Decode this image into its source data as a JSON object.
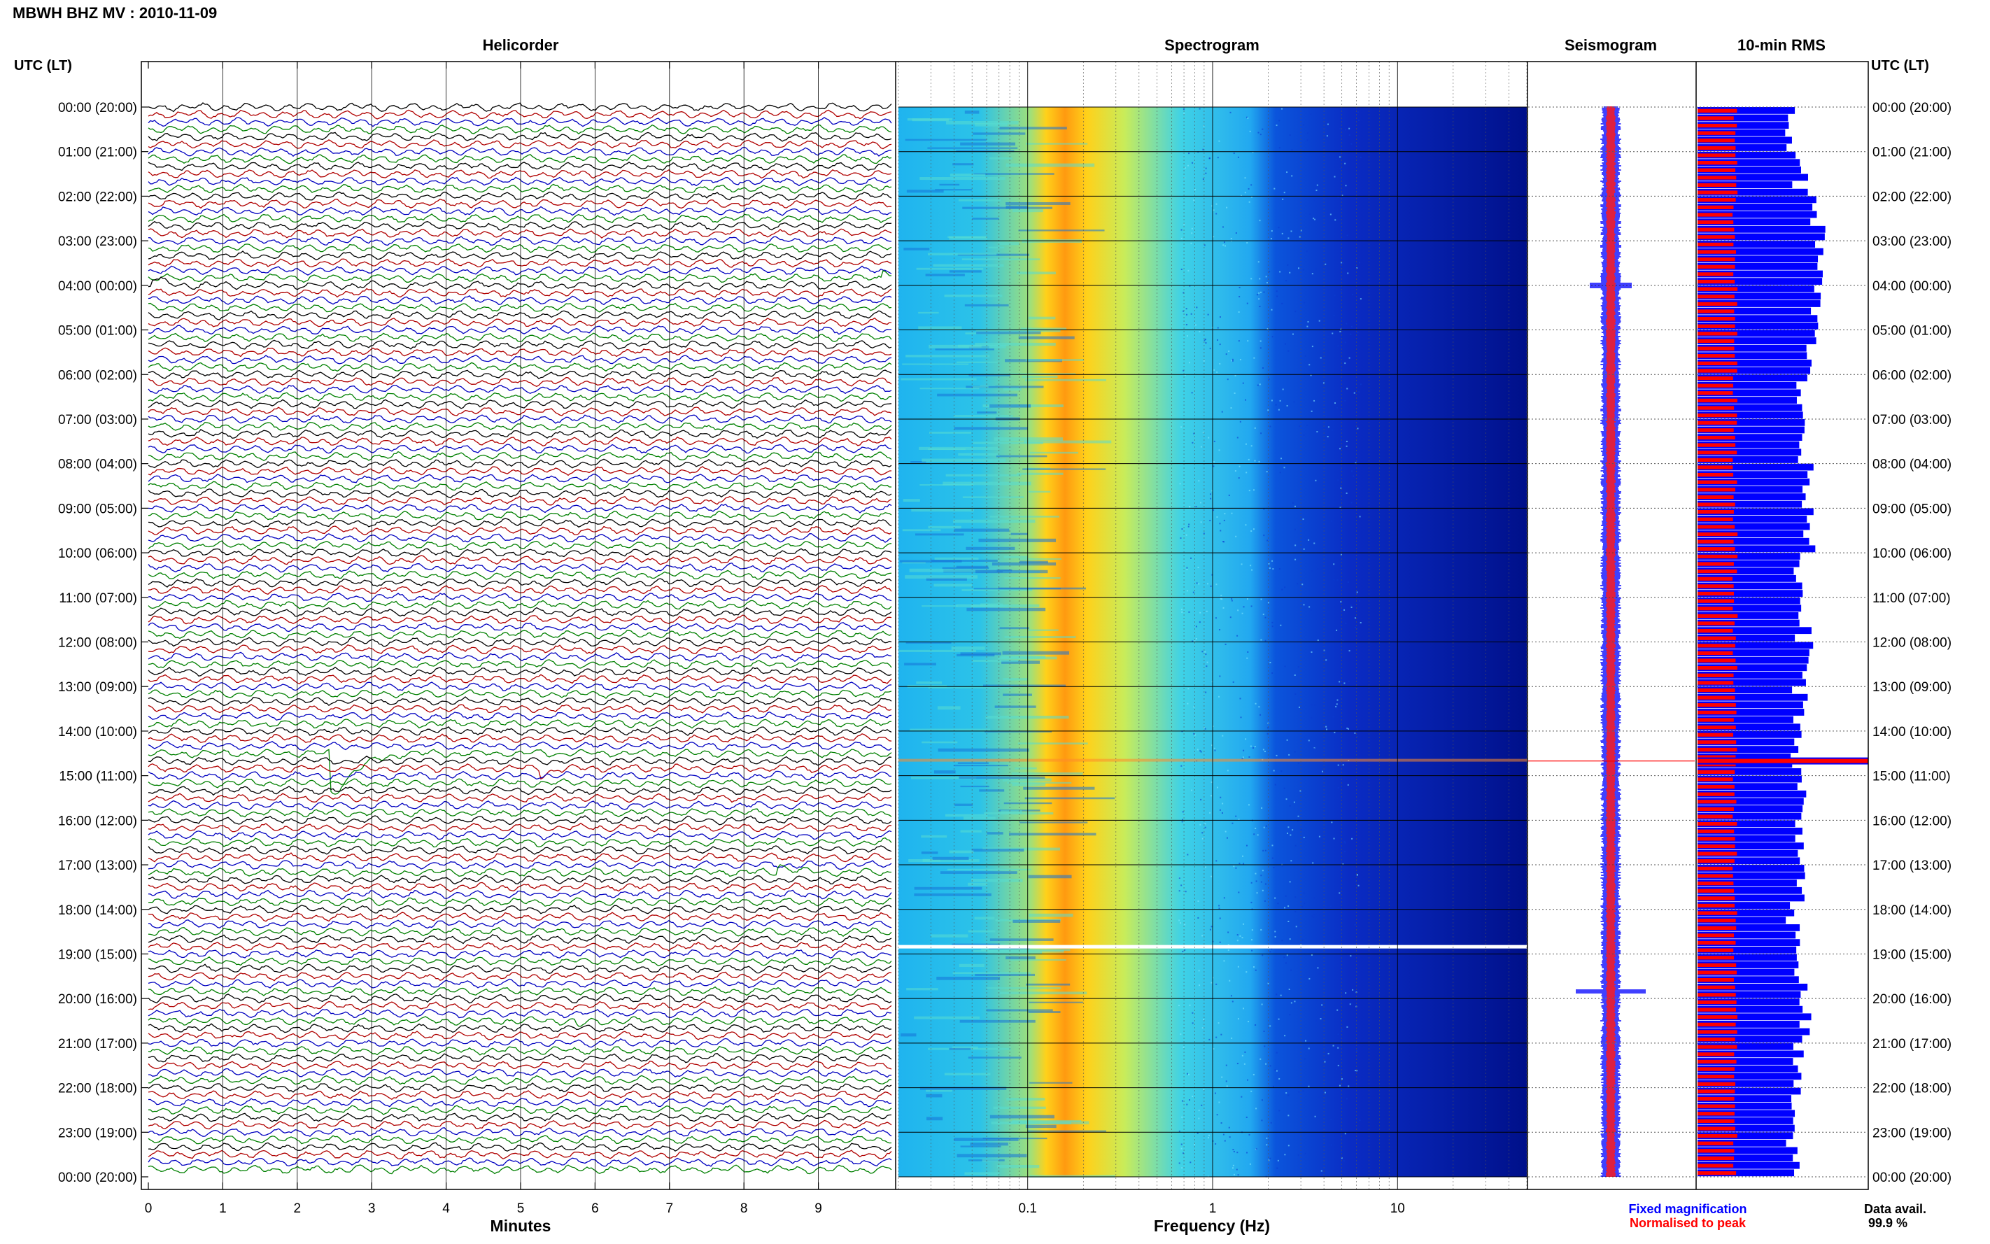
{
  "header": {
    "title": "MBWH BHZ MV : 2010-11-09",
    "left_axis_label": "UTC (LT)",
    "right_axis_label": "UTC (LT)"
  },
  "panels": {
    "helicorder": "Helicorder",
    "spectrogram": "Spectrogram",
    "seismogram": "Seismogram",
    "rms": "10-min RMS"
  },
  "axes": {
    "helicorder_xlabel": "Minutes",
    "spectrogram_xlabel": "Frequency (Hz)"
  },
  "legend": {
    "fixed": "Fixed magnification",
    "normalised": "Normalised to peak",
    "fixed_color": "#0000ff",
    "normalised_color": "#ff0000"
  },
  "availability": {
    "label": "Data avail.",
    "value": "99.9 %"
  },
  "colors": {
    "trace_cycle": [
      "#000000",
      "#b00000",
      "#0000c0",
      "#008000"
    ],
    "spectrogram_low": "#00008c",
    "spectrogram_high": "#ffd000",
    "rms_fixed": "#0000ff",
    "rms_normalised": "#ff0000"
  },
  "chart_data": [
    {
      "type": "line",
      "name": "helicorder",
      "title": "Helicorder",
      "xlabel": "Minutes",
      "xlim": [
        0,
        10
      ],
      "x_ticks": [
        "0",
        "1",
        "2",
        "3",
        "4",
        "5",
        "6",
        "7",
        "8",
        "9"
      ],
      "y_tick_labels": [
        "00:00 (20:00)",
        "01:00 (21:00)",
        "02:00 (22:00)",
        "03:00 (23:00)",
        "04:00 (00:00)",
        "05:00 (01:00)",
        "06:00 (02:00)",
        "07:00 (03:00)",
        "08:00 (04:00)",
        "09:00 (05:00)",
        "10:00 (06:00)",
        "11:00 (07:00)",
        "12:00 (08:00)",
        "13:00 (09:00)",
        "14:00 (10:00)",
        "15:00 (11:00)",
        "16:00 (12:00)",
        "17:00 (13:00)",
        "18:00 (14:00)",
        "19:00 (15:00)",
        "20:00 (16:00)",
        "21:00 (17:00)",
        "22:00 (18:00)",
        "23:00 (19:00)",
        "00:00 (20:00)"
      ],
      "events": [
        {
          "hour": 14.5,
          "minute": 2.5,
          "amplitude": "large"
        },
        {
          "hour": 14.83,
          "minute": 5.3,
          "amplitude": "small"
        },
        {
          "hour": 4.0,
          "minute": 0.1,
          "amplitude": "small"
        },
        {
          "hour": 3.83,
          "minute": 9.9,
          "amplitude": "small"
        },
        {
          "hour": 17.17,
          "minute": 8.5,
          "amplitude": "small"
        },
        {
          "hour": 19.33,
          "minute": 1.4,
          "amplitude": "small"
        },
        {
          "hour": 20.83,
          "minute": 1.2,
          "amplitude": "small"
        },
        {
          "hour": 20.5,
          "minute": 5.8,
          "amplitude": "small"
        }
      ]
    },
    {
      "type": "heatmap",
      "name": "spectrogram",
      "title": "Spectrogram",
      "xlabel": "Frequency (Hz)",
      "x_scale": "log",
      "xlim": [
        0.02,
        50
      ],
      "x_tick_labels": [
        "0.1",
        "1",
        "10"
      ],
      "peak_band_hz": [
        0.15,
        0.4
      ],
      "gap_hour": 18.83
    },
    {
      "type": "line",
      "name": "seismogram",
      "title": "Seismogram",
      "series": [
        {
          "name": "Fixed magnification"
        },
        {
          "name": "Normalised to peak"
        }
      ],
      "event_hour": 14.67
    },
    {
      "type": "bar",
      "name": "rms",
      "title": "10-min RMS",
      "orientation": "horizontal",
      "series": [
        {
          "name": "Fixed magnification",
          "bins_per_hour": 6,
          "relative_level": [
            0.55,
            0.6,
            0.7,
            0.72,
            0.68,
            0.66,
            0.62,
            0.6,
            0.64,
            0.66,
            0.6,
            0.62,
            0.64,
            0.6,
            0.58,
            0.6,
            0.62,
            0.58,
            0.56,
            0.6,
            0.62,
            0.58,
            0.56,
            0.56
          ]
        },
        {
          "name": "Normalised to peak",
          "relative_level": 0.22
        }
      ],
      "peak_hour": 14.67
    }
  ]
}
